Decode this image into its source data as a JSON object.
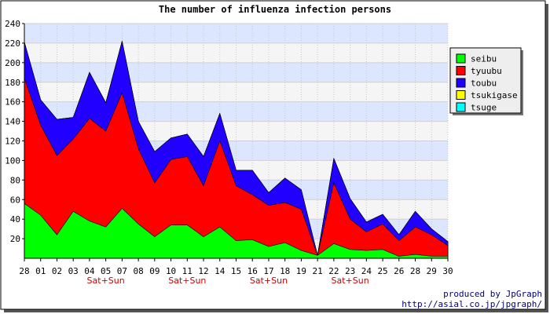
{
  "chart_data": {
    "type": "area",
    "stacked": true,
    "title": "The number of influenza infection persons",
    "xlabel": "",
    "ylabel": "",
    "ylim": [
      0,
      240
    ],
    "yticks": [
      20,
      40,
      60,
      80,
      100,
      120,
      140,
      160,
      180,
      200,
      220,
      240
    ],
    "grid": true,
    "legend_position": "right",
    "categories": [
      "28",
      "01",
      "02",
      "03",
      "04",
      "05",
      "07",
      "08",
      "09",
      "10",
      "11",
      "12",
      "14",
      "15",
      "16",
      "17",
      "18",
      "19",
      "21",
      "22",
      "23",
      "24",
      "25",
      "26",
      "28",
      "29",
      "30"
    ],
    "weekend_labels": [
      {
        "category_index": 5,
        "text": "Sat+Sun"
      },
      {
        "category_index": 10,
        "text": "Sat+Sun"
      },
      {
        "category_index": 15,
        "text": "Sat+Sun"
      },
      {
        "category_index": 20,
        "text": "Sat+Sun"
      }
    ],
    "series": [
      {
        "name": "seibu",
        "color": "#00ff00",
        "values": [
          56,
          44,
          24,
          48,
          38,
          32,
          51,
          35,
          22,
          34,
          34,
          22,
          32,
          18,
          19,
          12,
          16,
          8,
          3,
          15,
          9,
          8,
          9,
          2,
          4,
          2,
          2
        ]
      },
      {
        "name": "tyuubu",
        "color": "#ff0000",
        "values": [
          128,
          92,
          81,
          74,
          105,
          98,
          118,
          77,
          55,
          67,
          70,
          52,
          88,
          56,
          46,
          42,
          41,
          42,
          0,
          62,
          31,
          19,
          26,
          16,
          28,
          22,
          11
        ]
      },
      {
        "name": "toubu",
        "color": "#2200ff",
        "values": [
          37,
          26,
          37,
          22,
          47,
          29,
          53,
          28,
          32,
          22,
          23,
          30,
          28,
          16,
          25,
          13,
          25,
          20,
          0,
          25,
          21,
          10,
          10,
          6,
          16,
          6,
          4
        ]
      },
      {
        "name": "tsukigase",
        "color": "#ffff00",
        "values": [
          0,
          0,
          0,
          0,
          0,
          0,
          0,
          0,
          0,
          0,
          0,
          0,
          0,
          0,
          0,
          0,
          0,
          0,
          0,
          0,
          0,
          0,
          0,
          0,
          0,
          0,
          0
        ]
      },
      {
        "name": "tsuge",
        "color": "#00ffff",
        "values": [
          0,
          0,
          0,
          0,
          0,
          0,
          0,
          0,
          0,
          0,
          0,
          0,
          0,
          0,
          0,
          0,
          0,
          0,
          0,
          0,
          0,
          0,
          0,
          0,
          0,
          0,
          0
        ]
      }
    ]
  },
  "credit": {
    "line1": "produced by JpGraph",
    "line2": "http://asial.co.jp/jpgraph/"
  },
  "colors": {
    "band_light": "#f5f5f5",
    "band_blue": "#dde6ff",
    "weekend_label": "#cc0000",
    "credit": "#000080"
  }
}
